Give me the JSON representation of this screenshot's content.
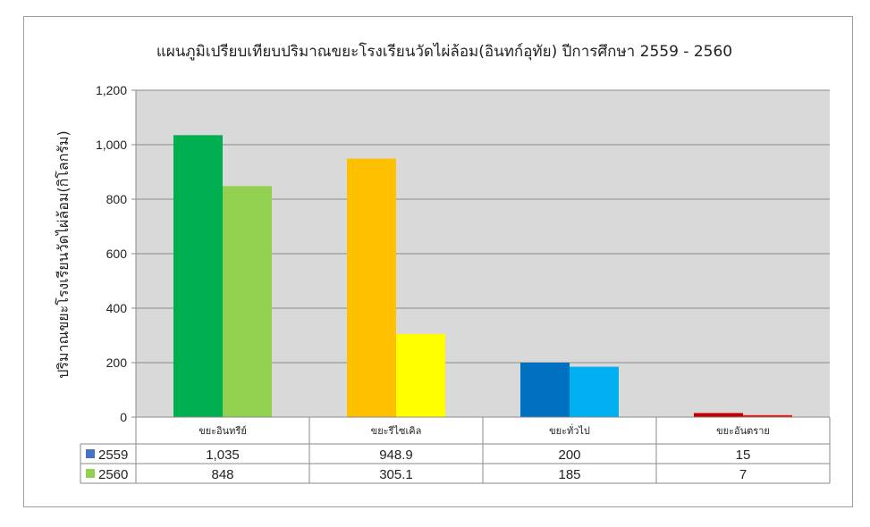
{
  "chart_data": {
    "type": "bar",
    "title": "แผนภูมิเปรียบเทียบปริมาณขยะโรงเรียนวัดไผ่ล้อม(อินทก์อุทัย) ปีการศึกษา 2559 - 2560",
    "xlabel": "",
    "ylabel": "ปริมาณขยะโรงเรียนวัดไผ่ล้อม(กิโลกรัม)",
    "ylim": [
      0,
      1200
    ],
    "yticks": [
      0,
      200,
      400,
      600,
      800,
      1000,
      1200
    ],
    "ytick_labels": [
      "0",
      "200",
      "400",
      "600",
      "800",
      "1,000",
      "1,200"
    ],
    "grid": true,
    "plot_background": "#d9d9d9",
    "categories": [
      "ขยะอินทรีย์",
      "ขยะรีไซเคิล",
      "ขยะทั่วไป",
      "ขยะอันตราย"
    ],
    "series": [
      {
        "name": "2559",
        "values": [
          1035,
          948.9,
          200,
          15
        ],
        "value_labels": [
          "1,035",
          "948.9",
          "200",
          "15"
        ],
        "legend_color": "#4472c4",
        "bar_colors": [
          "#00b050",
          "#ffc000",
          "#0070c0",
          "#c00000"
        ]
      },
      {
        "name": "2560",
        "values": [
          848,
          305.1,
          185,
          7
        ],
        "value_labels": [
          "848",
          "305.1",
          "185",
          "7"
        ],
        "legend_color": "#92d050",
        "bar_colors": [
          "#92d050",
          "#ffff00",
          "#00b0f0",
          "#ff0000"
        ]
      }
    ],
    "legend_placement": "data-table"
  }
}
